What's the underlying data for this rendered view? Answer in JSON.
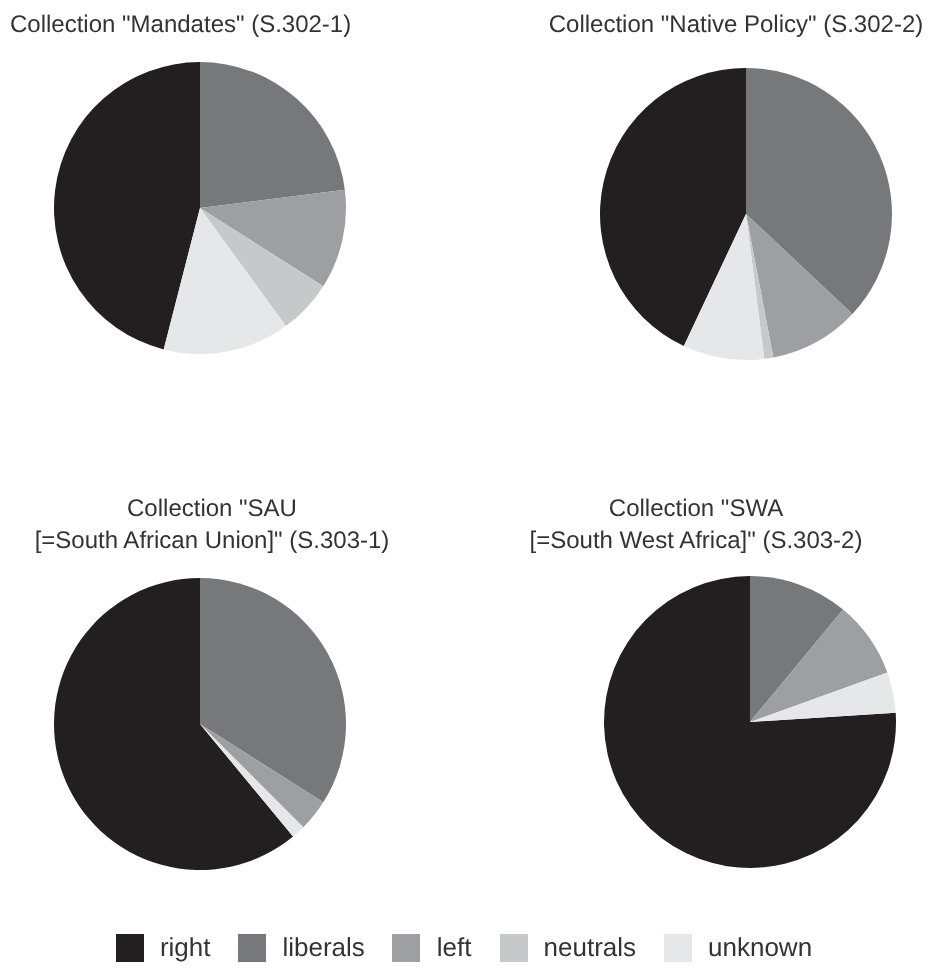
{
  "chart_data": [
    {
      "type": "pie",
      "title": "Collection \"Mandates\" (S.302-1)",
      "categories": [
        null,
        null,
        null,
        null,
        null
      ],
      "values": [
        46,
        23,
        11,
        6,
        14
      ],
      "colors": [
        "#231f20",
        "#77787b",
        "#9d9fa2",
        "#c7c8ca",
        "#e6e7e8"
      ]
    },
    {
      "type": "pie",
      "title": "Collection \"Native Policy\" (S.302-2)",
      "categories": [
        null,
        null,
        null,
        null,
        null
      ],
      "values": [
        43,
        37,
        10,
        1,
        9
      ],
      "colors": [
        "#231f20",
        "#77787b",
        "#9d9fa2",
        "#c7c8ca",
        "#e6e7e8"
      ]
    },
    {
      "type": "pie",
      "title": "Collection \"SAU\n[=South African Union]\" (S.303-1)",
      "categories": [
        null,
        null,
        null,
        null,
        null
      ],
      "values": [
        61,
        34,
        3.5,
        0,
        1.5
      ],
      "colors": [
        "#231f20",
        "#77787b",
        "#9d9fa2",
        "#c7c8ca",
        "#e6e7e8"
      ]
    },
    {
      "type": "pie",
      "title": "Collection \"SWA\n[=South West Africa]\" (S.303-2)",
      "categories": [
        "right",
        "liberals",
        "left",
        "neutrals",
        "unknown"
      ],
      "values": [
        76,
        11,
        8.5,
        0,
        4.5
      ],
      "colors": [
        "#231f20",
        "#77787b",
        "#9d9fa2",
        "#c7c8ca",
        "#e6e7e8"
      ],
      "legend": "bottom"
    }
  ]
}
